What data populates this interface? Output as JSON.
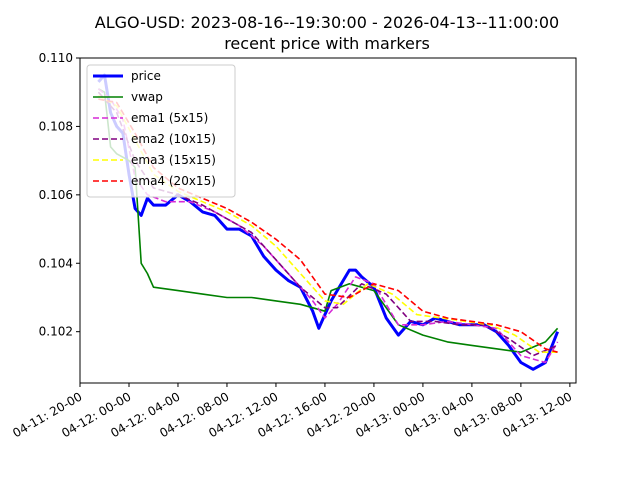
{
  "chart_data": {
    "type": "line",
    "title": "ALGO-USD: 2023-08-16--19:30:00 - 2026-04-13--11:00:00",
    "subtitle": "recent price with markers",
    "xlabel": "",
    "ylabel": "",
    "xlim": [
      "2026-04-11 20:00",
      "2026-04-13 12:30"
    ],
    "ylim": [
      0.1005,
      0.11
    ],
    "x_ticks": [
      "04-11: 20-00",
      "04-12: 00-00",
      "04-12: 04-00",
      "04-12: 08-00",
      "04-12: 12-00",
      "04-12: 16-00",
      "04-12: 20-00",
      "04-13: 00-00",
      "04-13: 04-00",
      "04-13: 08-00",
      "04-13: 12-00"
    ],
    "y_ticks": [
      "0.102",
      "0.104",
      "0.106",
      "0.108",
      "0.110"
    ],
    "legend_position": "top-left",
    "grid": false,
    "series": [
      {
        "name": "price",
        "color": "#0000ff",
        "style": "solid",
        "x": [
          "2026-04-11 21:30",
          "2026-04-11 22:00",
          "2026-04-11 22:30",
          "2026-04-11 23:00",
          "2026-04-11 23:30",
          "2026-04-12 00:00",
          "2026-04-12 00:30",
          "2026-04-12 01:00",
          "2026-04-12 01:30",
          "2026-04-12 02:00",
          "2026-04-12 03:00",
          "2026-04-12 04:00",
          "2026-04-12 05:00",
          "2026-04-12 06:00",
          "2026-04-12 07:00",
          "2026-04-12 08:00",
          "2026-04-12 09:00",
          "2026-04-12 10:00",
          "2026-04-12 11:00",
          "2026-04-12 12:00",
          "2026-04-12 13:00",
          "2026-04-12 14:00",
          "2026-04-12 15:00",
          "2026-04-12 15:30",
          "2026-04-12 16:00",
          "2026-04-12 16:30",
          "2026-04-12 17:00",
          "2026-04-12 18:00",
          "2026-04-12 18:30",
          "2026-04-12 19:00",
          "2026-04-12 20:00",
          "2026-04-12 21:00",
          "2026-04-12 22:00",
          "2026-04-12 23:00",
          "2026-04-13 00:00",
          "2026-04-13 01:00",
          "2026-04-13 02:00",
          "2026-04-13 03:00",
          "2026-04-13 04:00",
          "2026-04-13 05:00",
          "2026-04-13 06:00",
          "2026-04-13 07:00",
          "2026-04-13 08:00",
          "2026-04-13 09:00",
          "2026-04-13 10:00",
          "2026-04-13 11:00"
        ],
        "values": [
          0.1093,
          0.1095,
          0.1084,
          0.108,
          0.1078,
          0.1066,
          0.1056,
          0.1054,
          0.1059,
          0.1057,
          0.1057,
          0.106,
          0.1058,
          0.1055,
          0.1054,
          0.105,
          0.105,
          0.1048,
          0.1042,
          0.1038,
          0.1035,
          0.1033,
          0.1026,
          0.1021,
          0.1025,
          0.1029,
          0.1032,
          0.1038,
          0.1038,
          0.1036,
          0.1033,
          0.1024,
          0.1019,
          0.1023,
          0.1022,
          0.1024,
          0.1023,
          0.1022,
          0.1022,
          0.1022,
          0.102,
          0.1016,
          0.1011,
          0.1009,
          0.1011,
          0.102
        ]
      },
      {
        "name": "vwap",
        "color": "#008000",
        "style": "solid",
        "x": [
          "2026-04-11 21:30",
          "2026-04-11 22:00",
          "2026-04-11 22:30",
          "2026-04-11 23:00",
          "2026-04-11 23:30",
          "2026-04-12 00:00",
          "2026-04-12 00:30",
          "2026-04-12 01:00",
          "2026-04-12 01:30",
          "2026-04-12 02:00",
          "2026-04-12 04:00",
          "2026-04-12 06:00",
          "2026-04-12 08:00",
          "2026-04-12 10:00",
          "2026-04-12 12:00",
          "2026-04-12 14:00",
          "2026-04-12 16:00",
          "2026-04-12 16:30",
          "2026-04-12 18:00",
          "2026-04-12 20:00",
          "2026-04-12 22:00",
          "2026-04-13 00:00",
          "2026-04-13 02:00",
          "2026-04-13 04:00",
          "2026-04-13 06:00",
          "2026-04-13 08:00",
          "2026-04-13 10:00",
          "2026-04-13 11:00"
        ],
        "values": [
          0.1091,
          0.109,
          0.1074,
          0.1072,
          0.1071,
          0.107,
          0.1068,
          0.104,
          0.1037,
          0.1033,
          0.1032,
          0.1031,
          0.103,
          0.103,
          0.1029,
          0.1028,
          0.1026,
          0.1032,
          0.1034,
          0.1032,
          0.1022,
          0.1019,
          0.1017,
          0.1016,
          0.1015,
          0.1014,
          0.1017,
          0.1021
        ]
      },
      {
        "name": "ema1 (5x15)",
        "color": "#d62ad6",
        "style": "dashed",
        "x": [
          "2026-04-11 21:30",
          "2026-04-11 22:30",
          "2026-04-11 23:30",
          "2026-04-12 00:30",
          "2026-04-12 01:30",
          "2026-04-12 03:00",
          "2026-04-12 05:00",
          "2026-04-12 07:00",
          "2026-04-12 09:00",
          "2026-04-12 11:00",
          "2026-04-12 13:00",
          "2026-04-12 15:00",
          "2026-04-12 16:00",
          "2026-04-12 17:00",
          "2026-04-12 18:30",
          "2026-04-12 20:00",
          "2026-04-12 22:00",
          "2026-04-13 00:00",
          "2026-04-13 02:00",
          "2026-04-13 04:00",
          "2026-04-13 06:00",
          "2026-04-13 08:00",
          "2026-04-13 10:00",
          "2026-04-13 11:00"
        ],
        "values": [
          0.1091,
          0.1088,
          0.1082,
          0.1065,
          0.106,
          0.1058,
          0.1058,
          0.1055,
          0.1051,
          0.1045,
          0.1037,
          0.1029,
          0.1024,
          0.1028,
          0.1036,
          0.1034,
          0.1022,
          0.1022,
          0.1023,
          0.1022,
          0.1021,
          0.1013,
          0.1011,
          0.1017
        ]
      },
      {
        "name": "ema2 (10x15)",
        "color": "#800080",
        "style": "dashed",
        "x": [
          "2026-04-11 21:30",
          "2026-04-11 23:00",
          "2026-04-12 00:30",
          "2026-04-12 02:00",
          "2026-04-12 04:00",
          "2026-04-12 06:00",
          "2026-04-12 08:00",
          "2026-04-12 10:00",
          "2026-04-12 12:00",
          "2026-04-12 14:00",
          "2026-04-12 16:00",
          "2026-04-12 17:00",
          "2026-04-12 19:00",
          "2026-04-12 21:00",
          "2026-04-12 23:00",
          "2026-04-13 01:00",
          "2026-04-13 03:00",
          "2026-04-13 05:00",
          "2026-04-13 07:00",
          "2026-04-13 09:00",
          "2026-04-13 11:00"
        ],
        "values": [
          0.109,
          0.1084,
          0.107,
          0.1062,
          0.106,
          0.1057,
          0.1053,
          0.1049,
          0.1041,
          0.1033,
          0.1027,
          0.1027,
          0.1034,
          0.1031,
          0.1023,
          0.1023,
          0.1022,
          0.1022,
          0.1018,
          0.1013,
          0.1016
        ]
      },
      {
        "name": "ema3 (15x15)",
        "color": "#ffff00",
        "style": "dashed",
        "x": [
          "2026-04-11 21:30",
          "2026-04-11 23:00",
          "2026-04-12 00:30",
          "2026-04-12 02:00",
          "2026-04-12 04:00",
          "2026-04-12 06:00",
          "2026-04-12 08:00",
          "2026-04-12 10:00",
          "2026-04-12 12:00",
          "2026-04-12 14:00",
          "2026-04-12 16:00",
          "2026-04-12 17:30",
          "2026-04-12 19:30",
          "2026-04-12 21:30",
          "2026-04-12 23:30",
          "2026-04-13 01:30",
          "2026-04-13 03:30",
          "2026-04-13 05:30",
          "2026-04-13 07:30",
          "2026-04-13 09:30",
          "2026-04-13 11:00"
        ],
        "values": [
          0.1089,
          0.1086,
          0.1076,
          0.1066,
          0.1061,
          0.1058,
          0.1055,
          0.1051,
          0.1045,
          0.1037,
          0.1029,
          0.1028,
          0.1034,
          0.1031,
          0.1025,
          0.1024,
          0.1023,
          0.1022,
          0.1019,
          0.1014,
          0.1014
        ]
      },
      {
        "name": "ema4 (20x15)",
        "color": "#ff0000",
        "style": "dashed",
        "x": [
          "2026-04-11 21:30",
          "2026-04-11 23:00",
          "2026-04-12 00:30",
          "2026-04-12 02:00",
          "2026-04-12 04:00",
          "2026-04-12 06:00",
          "2026-04-12 08:00",
          "2026-04-12 10:00",
          "2026-04-12 12:00",
          "2026-04-12 14:00",
          "2026-04-12 16:00",
          "2026-04-12 18:00",
          "2026-04-12 20:00",
          "2026-04-12 22:00",
          "2026-04-13 00:00",
          "2026-04-13 02:00",
          "2026-04-13 04:00",
          "2026-04-13 06:00",
          "2026-04-13 08:00",
          "2026-04-13 10:00",
          "2026-04-13 11:00"
        ],
        "values": [
          0.1088,
          0.1087,
          0.1078,
          0.1068,
          0.1062,
          0.1059,
          0.1056,
          0.1052,
          0.1047,
          0.1041,
          0.1031,
          0.103,
          0.1034,
          0.1032,
          0.1026,
          0.1024,
          0.1023,
          0.1022,
          0.102,
          0.1015,
          0.1014
        ]
      }
    ]
  }
}
